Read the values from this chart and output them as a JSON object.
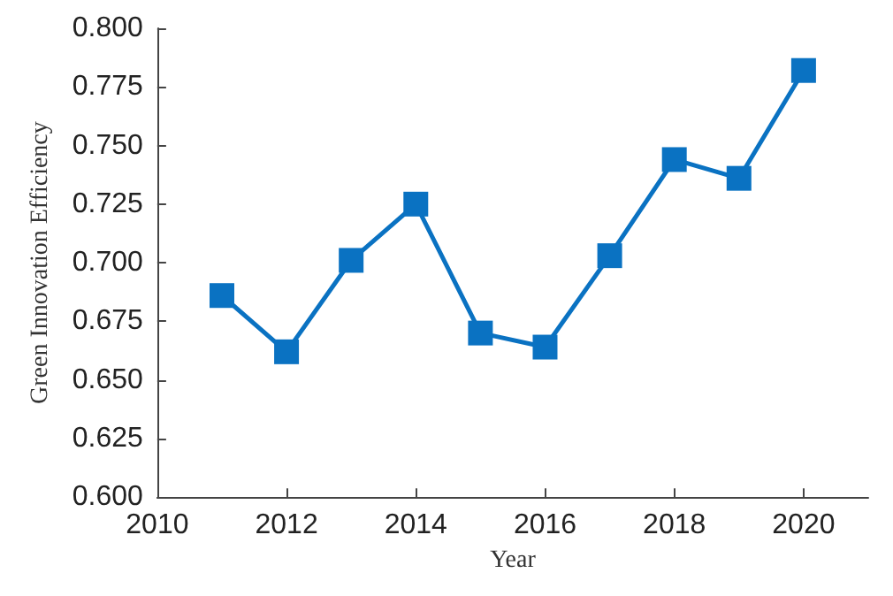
{
  "chart_data": {
    "type": "line",
    "xlabel": "Year",
    "ylabel": "Green Innovation Efficiency",
    "x": [
      2011,
      2012,
      2013,
      2014,
      2015,
      2016,
      2017,
      2018,
      2019,
      2020
    ],
    "series": [
      {
        "color": "#0a72c2",
        "values": [
          0.686,
          0.662,
          0.701,
          0.725,
          0.67,
          0.664,
          0.703,
          0.744,
          0.736,
          0.782
        ]
      }
    ],
    "xlim": [
      2010,
      2021
    ],
    "xticks": [
      2010,
      2012,
      2014,
      2016,
      2018,
      2020
    ],
    "ylim": [
      0.6,
      0.8
    ],
    "yticks": [
      {
        "value": 0.6,
        "label": "0.600"
      },
      {
        "value": 0.625,
        "label": "0.625"
      },
      {
        "value": 0.65,
        "label": "0.650"
      },
      {
        "value": 0.675,
        "label": "0.675"
      },
      {
        "value": 0.7,
        "label": "0.700"
      },
      {
        "value": 0.725,
        "label": "0.725"
      },
      {
        "value": 0.75,
        "label": "0.750"
      },
      {
        "value": 0.775,
        "label": "0.775"
      },
      {
        "value": 0.8,
        "label": "0.800"
      }
    ],
    "grid": false,
    "marker": "square",
    "line_style": "solid"
  }
}
